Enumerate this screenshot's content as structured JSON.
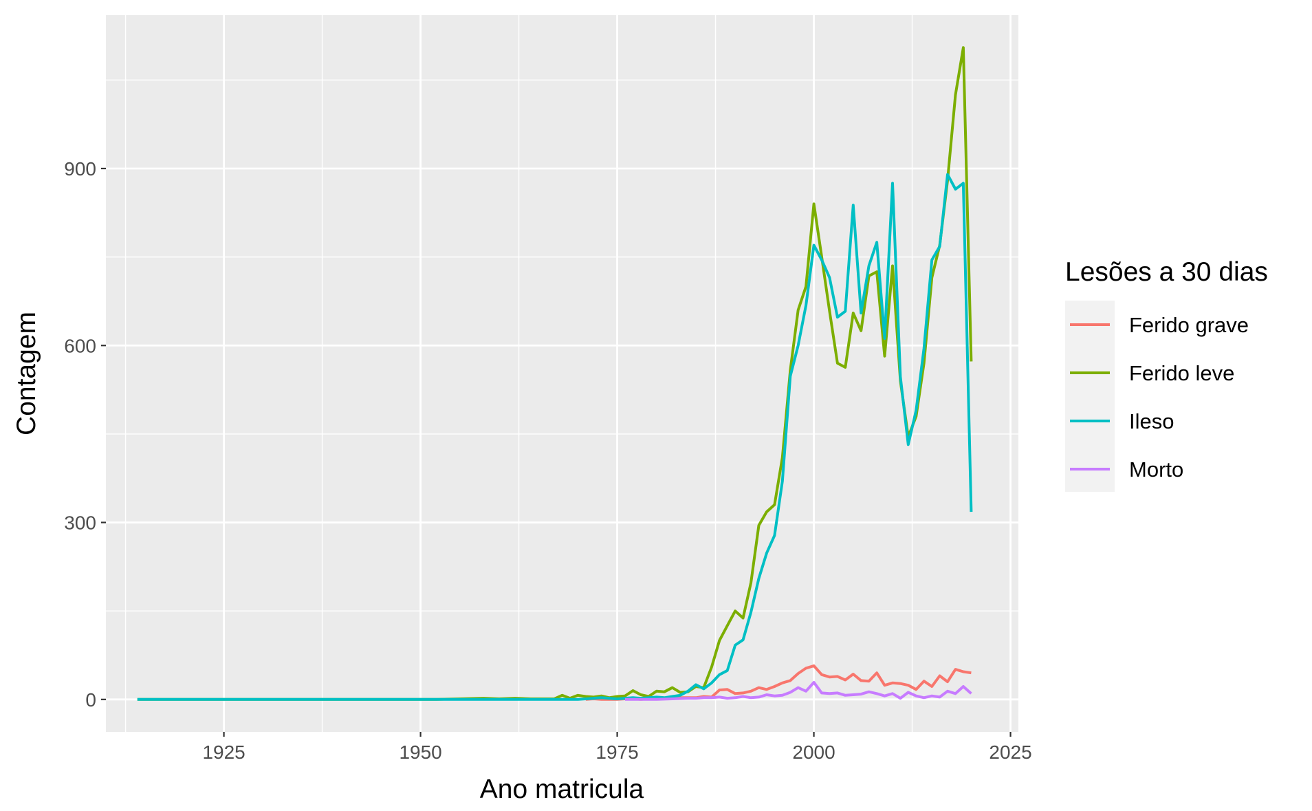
{
  "chart_data": {
    "type": "line",
    "title": "",
    "xlabel": "Ano matricula",
    "ylabel": "Contagem",
    "xlim": [
      1910,
      2026
    ],
    "ylim": [
      -55,
      1160
    ],
    "x_ticks": [
      1925,
      1950,
      1975,
      2000,
      2025
    ],
    "y_ticks": [
      0,
      300,
      600,
      900
    ],
    "grid": true,
    "legend": {
      "title": "Lesões a 30 dias",
      "placement": "right"
    },
    "series": [
      {
        "name": "Ferido grave",
        "color": "#F8766D",
        "points": [
          [
            1971,
            0
          ],
          [
            1972,
            1
          ],
          [
            1973,
            0
          ],
          [
            1974,
            0
          ],
          [
            1975,
            0
          ],
          [
            1976,
            1
          ],
          [
            1977,
            1
          ],
          [
            1978,
            0
          ],
          [
            1979,
            1
          ],
          [
            1980,
            1
          ],
          [
            1981,
            2
          ],
          [
            1982,
            2
          ],
          [
            1983,
            3
          ],
          [
            1984,
            3
          ],
          [
            1985,
            3
          ],
          [
            1986,
            5
          ],
          [
            1987,
            4
          ],
          [
            1988,
            16
          ],
          [
            1989,
            17
          ],
          [
            1990,
            10
          ],
          [
            1991,
            11
          ],
          [
            1992,
            14
          ],
          [
            1993,
            20
          ],
          [
            1994,
            17
          ],
          [
            1995,
            22
          ],
          [
            1996,
            28
          ],
          [
            1997,
            32
          ],
          [
            1998,
            44
          ],
          [
            1999,
            53
          ],
          [
            2000,
            57
          ],
          [
            2001,
            42
          ],
          [
            2002,
            38
          ],
          [
            2003,
            39
          ],
          [
            2004,
            33
          ],
          [
            2005,
            43
          ],
          [
            2006,
            32
          ],
          [
            2007,
            31
          ],
          [
            2008,
            45
          ],
          [
            2009,
            24
          ],
          [
            2010,
            28
          ],
          [
            2011,
            27
          ],
          [
            2012,
            24
          ],
          [
            2013,
            17
          ],
          [
            2014,
            31
          ],
          [
            2015,
            22
          ],
          [
            2016,
            40
          ],
          [
            2017,
            30
          ],
          [
            2018,
            51
          ],
          [
            2019,
            47
          ],
          [
            2020,
            45
          ]
        ]
      },
      {
        "name": "Ferido leve",
        "color": "#7CAE00",
        "points": [
          [
            1914,
            0
          ],
          [
            1920,
            0
          ],
          [
            1930,
            0
          ],
          [
            1940,
            0
          ],
          [
            1950,
            0
          ],
          [
            1952,
            0
          ],
          [
            1955,
            1
          ],
          [
            1958,
            2
          ],
          [
            1960,
            1
          ],
          [
            1962,
            2
          ],
          [
            1964,
            1
          ],
          [
            1967,
            1
          ],
          [
            1968,
            7
          ],
          [
            1969,
            2
          ],
          [
            1970,
            7
          ],
          [
            1971,
            5
          ],
          [
            1972,
            4
          ],
          [
            1973,
            6
          ],
          [
            1974,
            3
          ],
          [
            1975,
            5
          ],
          [
            1976,
            6
          ],
          [
            1977,
            15
          ],
          [
            1978,
            8
          ],
          [
            1979,
            5
          ],
          [
            1980,
            14
          ],
          [
            1981,
            13
          ],
          [
            1982,
            20
          ],
          [
            1983,
            12
          ],
          [
            1984,
            13
          ],
          [
            1985,
            22
          ],
          [
            1986,
            20
          ],
          [
            1987,
            55
          ],
          [
            1988,
            100
          ],
          [
            1989,
            125
          ],
          [
            1990,
            150
          ],
          [
            1991,
            138
          ],
          [
            1992,
            198
          ],
          [
            1993,
            295
          ],
          [
            1994,
            318
          ],
          [
            1995,
            330
          ],
          [
            1996,
            410
          ],
          [
            1997,
            558
          ],
          [
            1998,
            660
          ],
          [
            1999,
            700
          ],
          [
            2000,
            840
          ],
          [
            2001,
            750
          ],
          [
            2002,
            658
          ],
          [
            2003,
            570
          ],
          [
            2004,
            563
          ],
          [
            2005,
            655
          ],
          [
            2006,
            625
          ],
          [
            2007,
            718
          ],
          [
            2008,
            725
          ],
          [
            2009,
            582
          ],
          [
            2010,
            735
          ],
          [
            2011,
            540
          ],
          [
            2012,
            445
          ],
          [
            2013,
            480
          ],
          [
            2014,
            570
          ],
          [
            2015,
            715
          ],
          [
            2016,
            770
          ],
          [
            2017,
            880
          ],
          [
            2018,
            1025
          ],
          [
            2019,
            1105
          ],
          [
            2020,
            573
          ]
        ]
      },
      {
        "name": "Ileso",
        "color": "#00BFC4",
        "points": [
          [
            1914,
            0
          ],
          [
            1920,
            0
          ],
          [
            1930,
            0
          ],
          [
            1940,
            0
          ],
          [
            1950,
            0
          ],
          [
            1955,
            0
          ],
          [
            1960,
            0
          ],
          [
            1965,
            0
          ],
          [
            1970,
            0
          ],
          [
            1971,
            1
          ],
          [
            1972,
            2
          ],
          [
            1973,
            3
          ],
          [
            1974,
            2
          ],
          [
            1975,
            1
          ],
          [
            1976,
            2
          ],
          [
            1977,
            3
          ],
          [
            1978,
            2
          ],
          [
            1979,
            3
          ],
          [
            1980,
            4
          ],
          [
            1981,
            3
          ],
          [
            1982,
            5
          ],
          [
            1983,
            7
          ],
          [
            1984,
            14
          ],
          [
            1985,
            25
          ],
          [
            1986,
            18
          ],
          [
            1987,
            28
          ],
          [
            1988,
            42
          ],
          [
            1989,
            49
          ],
          [
            1990,
            92
          ],
          [
            1991,
            101
          ],
          [
            1992,
            148
          ],
          [
            1993,
            205
          ],
          [
            1994,
            248
          ],
          [
            1995,
            278
          ],
          [
            1996,
            370
          ],
          [
            1997,
            548
          ],
          [
            1998,
            600
          ],
          [
            1999,
            668
          ],
          [
            2000,
            770
          ],
          [
            2001,
            745
          ],
          [
            2002,
            715
          ],
          [
            2003,
            648
          ],
          [
            2004,
            658
          ],
          [
            2005,
            838
          ],
          [
            2006,
            655
          ],
          [
            2007,
            735
          ],
          [
            2008,
            775
          ],
          [
            2009,
            612
          ],
          [
            2010,
            875
          ],
          [
            2011,
            547
          ],
          [
            2012,
            432
          ],
          [
            2013,
            490
          ],
          [
            2014,
            595
          ],
          [
            2015,
            745
          ],
          [
            2016,
            768
          ],
          [
            2017,
            890
          ],
          [
            2018,
            865
          ],
          [
            2019,
            875
          ],
          [
            2020,
            318
          ]
        ]
      },
      {
        "name": "Morto",
        "color": "#C77CFF",
        "points": [
          [
            1976,
            0
          ],
          [
            1978,
            0
          ],
          [
            1980,
            0
          ],
          [
            1982,
            1
          ],
          [
            1984,
            2
          ],
          [
            1985,
            2
          ],
          [
            1986,
            3
          ],
          [
            1987,
            3
          ],
          [
            1988,
            4
          ],
          [
            1989,
            2
          ],
          [
            1990,
            3
          ],
          [
            1991,
            5
          ],
          [
            1992,
            3
          ],
          [
            1993,
            4
          ],
          [
            1994,
            8
          ],
          [
            1995,
            6
          ],
          [
            1996,
            7
          ],
          [
            1997,
            12
          ],
          [
            1998,
            20
          ],
          [
            1999,
            14
          ],
          [
            2000,
            29
          ],
          [
            2001,
            11
          ],
          [
            2002,
            10
          ],
          [
            2003,
            11
          ],
          [
            2004,
            7
          ],
          [
            2005,
            8
          ],
          [
            2006,
            9
          ],
          [
            2007,
            13
          ],
          [
            2008,
            10
          ],
          [
            2009,
            6
          ],
          [
            2010,
            10
          ],
          [
            2011,
            2
          ],
          [
            2012,
            12
          ],
          [
            2013,
            6
          ],
          [
            2014,
            3
          ],
          [
            2015,
            6
          ],
          [
            2016,
            4
          ],
          [
            2017,
            14
          ],
          [
            2018,
            10
          ],
          [
            2019,
            22
          ],
          [
            2020,
            10
          ]
        ]
      }
    ]
  }
}
